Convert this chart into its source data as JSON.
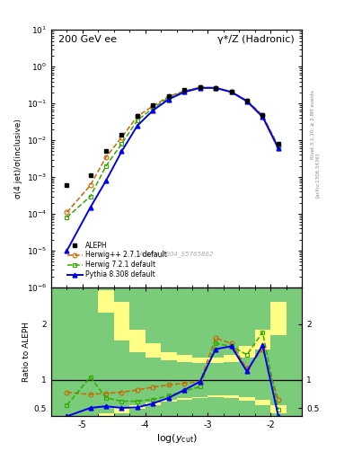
{
  "title_left": "200 GeV ee",
  "title_right": "γ*/Z (Hadronic)",
  "ylabel_main": "σ(4 jet)/σ(inclusive)",
  "ylabel_ratio": "Ratio to ALEPH",
  "xlabel": "log(y_cut)",
  "right_label": "Rivet 3.1.10; ≥ 2.8M events",
  "right_label2": "[arXiv:1306.3436]",
  "watermark": "ALEPH_2004_S5765862",
  "log_x": [
    -5.25,
    -4.875,
    -4.625,
    -4.375,
    -4.125,
    -3.875,
    -3.625,
    -3.375,
    -3.125,
    -2.875,
    -2.625,
    -2.375,
    -2.125,
    -1.875
  ],
  "aleph_y": [
    0.0006,
    0.0011,
    0.005,
    0.014,
    0.045,
    0.09,
    0.16,
    0.23,
    0.28,
    0.27,
    0.21,
    0.12,
    0.05,
    0.008
  ],
  "herwig_pp_y": [
    0.00011,
    0.0006,
    0.0035,
    0.012,
    0.045,
    0.085,
    0.155,
    0.22,
    0.275,
    0.27,
    0.21,
    0.12,
    0.048,
    0.007
  ],
  "herwig7_y": [
    8e-05,
    0.0003,
    0.002,
    0.008,
    0.035,
    0.075,
    0.145,
    0.215,
    0.27,
    0.265,
    0.205,
    0.118,
    0.045,
    0.0065
  ],
  "pythia_y": [
    1e-05,
    0.00015,
    0.0008,
    0.005,
    0.025,
    0.065,
    0.13,
    0.205,
    0.265,
    0.265,
    0.205,
    0.115,
    0.043,
    0.006
  ],
  "ratio_hp_x": [
    -5.25,
    -4.875,
    -4.625,
    -4.375,
    -4.125,
    -3.875,
    -3.625,
    -3.375,
    -3.125,
    -2.875,
    -2.625,
    -2.375,
    -2.125,
    -1.875
  ],
  "ratio_hp_y": [
    0.78,
    0.74,
    0.76,
    0.78,
    0.82,
    0.87,
    0.91,
    0.94,
    0.97,
    1.75,
    1.65,
    1.2,
    1.55,
    0.65
  ],
  "ratio_h7_x": [
    -5.25,
    -4.875,
    -4.625,
    -4.375,
    -4.125,
    -3.875,
    -3.625,
    -3.375,
    -3.125,
    -2.875,
    -2.625,
    -2.375,
    -2.125,
    -1.875
  ],
  "ratio_h7_y": [
    0.55,
    1.05,
    0.68,
    0.62,
    0.62,
    0.65,
    0.72,
    0.8,
    0.88,
    1.65,
    1.6,
    1.45,
    1.85,
    0.47
  ],
  "ratio_py_x": [
    -5.25,
    -4.875,
    -4.625,
    -4.375,
    -4.125,
    -3.875,
    -3.625,
    -3.375,
    -3.125,
    -2.875,
    -2.625,
    -2.375,
    -2.125,
    -1.875
  ],
  "ratio_py_y": [
    0.35,
    0.5,
    0.53,
    0.5,
    0.51,
    0.58,
    0.68,
    0.82,
    0.97,
    1.55,
    1.6,
    1.15,
    1.62,
    0.35
  ],
  "band_x_edges": [
    -5.5,
    -5.0,
    -4.75,
    -4.5,
    -4.25,
    -4.0,
    -3.75,
    -3.5,
    -3.25,
    -3.0,
    -2.75,
    -2.5,
    -2.25,
    -2.0,
    -1.75,
    -1.5
  ],
  "band_green_lo": [
    0.35,
    0.35,
    0.4,
    0.5,
    0.55,
    0.6,
    0.65,
    0.68,
    0.7,
    0.72,
    0.72,
    0.7,
    0.65,
    0.55,
    0.35,
    0.35
  ],
  "band_green_hi": [
    2.6,
    2.6,
    2.2,
    1.7,
    1.5,
    1.4,
    1.35,
    1.32,
    1.3,
    1.3,
    1.32,
    1.4,
    1.55,
    1.8,
    2.6,
    2.6
  ],
  "band_yellow_lo": [
    0.35,
    0.35,
    0.35,
    0.4,
    0.48,
    0.55,
    0.62,
    0.65,
    0.68,
    0.7,
    0.68,
    0.63,
    0.55,
    0.4,
    0.35,
    0.35
  ],
  "band_yellow_hi": [
    2.6,
    2.6,
    2.6,
    2.4,
    1.9,
    1.65,
    1.5,
    1.45,
    1.4,
    1.4,
    1.45,
    1.6,
    1.9,
    2.4,
    2.6,
    2.6
  ],
  "aleph_color": "#000000",
  "herwig_pp_color": "#cc6600",
  "herwig7_color": "#33aa00",
  "pythia_color": "#0000ee",
  "bg_green": "#7acc7a",
  "bg_yellow": "#ffff88",
  "xlim": [
    -5.5,
    -1.5
  ],
  "ylim_main_lo": 1e-06,
  "ylim_main_hi": 10,
  "ylim_ratio_lo": 0.35,
  "ylim_ratio_hi": 2.65
}
